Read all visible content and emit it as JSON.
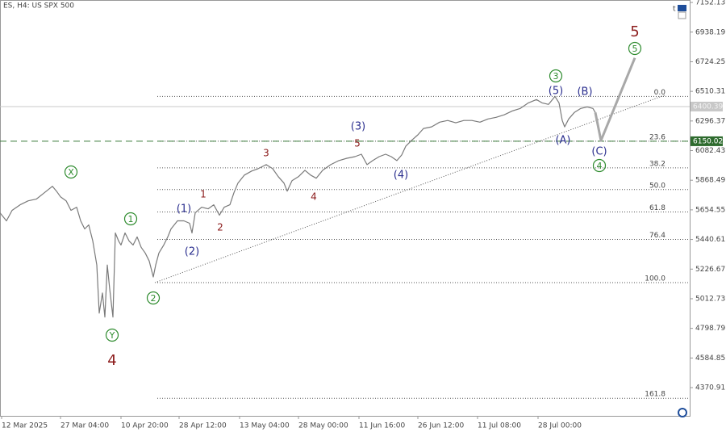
{
  "chart_data": {
    "type": "line",
    "title": "ES, H4:  US SPX 500",
    "corner_text": "t",
    "series": [
      {
        "color": "#7a7a7a",
        "x": [
          0,
          8,
          15,
          25,
          35,
          45,
          55,
          65,
          70,
          75,
          82,
          88,
          95,
          100,
          105,
          110,
          115,
          120,
          123,
          127,
          130,
          133,
          136,
          140,
          143,
          147,
          150,
          155,
          160,
          165,
          170,
          175,
          180,
          185,
          190,
          193,
          197,
          203,
          208,
          212,
          220,
          228,
          235,
          238,
          242,
          250,
          258,
          265,
          272,
          278,
          285,
          290,
          295,
          303,
          312,
          320,
          330,
          338,
          345,
          352,
          356,
          362,
          370,
          378,
          385,
          392,
          400,
          410,
          420,
          430,
          440,
          448,
          455,
          462,
          470,
          478,
          485,
          492,
          498,
          503,
          510,
          518,
          525,
          535,
          545,
          555,
          565,
          575,
          585,
          595,
          605,
          615,
          625,
          635,
          645,
          655,
          665,
          672,
          680,
          688,
          693,
          697,
          700,
          705,
          712,
          720,
          728,
          735,
          738
        ],
        "values": [
          5633,
          5575,
          5651,
          5691,
          5720,
          5732,
          5778,
          5825,
          5790,
          5749,
          5720,
          5651,
          5674,
          5575,
          5517,
          5546,
          5430,
          5256,
          4909,
          5054,
          4880,
          5256,
          5083,
          4880,
          5488,
          5430,
          5401,
          5488,
          5430,
          5401,
          5459,
          5384,
          5343,
          5285,
          5170,
          5256,
          5343,
          5401,
          5459,
          5517,
          5575,
          5575,
          5558,
          5488,
          5633,
          5674,
          5662,
          5691,
          5616,
          5674,
          5691,
          5778,
          5848,
          5906,
          5935,
          5952,
          5981,
          5952,
          5894,
          5848,
          5790,
          5865,
          5894,
          5940,
          5906,
          5883,
          5940,
          5981,
          6010,
          6027,
          6039,
          6056,
          5981,
          6010,
          6039,
          6056,
          6039,
          6010,
          6051,
          6114,
          6155,
          6196,
          6242,
          6254,
          6288,
          6300,
          6283,
          6300,
          6300,
          6288,
          6311,
          6323,
          6341,
          6369,
          6387,
          6427,
          6451,
          6427,
          6416,
          6474,
          6427,
          6300,
          6254,
          6311,
          6358,
          6387,
          6398,
          6387,
          6358
        ]
      },
      {
        "color": "#a8a8a8",
        "x": [
          738,
          745,
          787
        ],
        "values": [
          6358,
          6155,
          6752
        ]
      }
    ],
    "trendline": {
      "x": [
        192,
        825
      ],
      "values": [
        5129,
        6485
      ]
    },
    "fib_levels": [
      {
        "value": 6474,
        "label": "0.0"
      },
      {
        "value": 6150,
        "label": "23.6"
      },
      {
        "value": 5958,
        "label": "38.2"
      },
      {
        "value": 5801,
        "label": "50.0"
      },
      {
        "value": 5639,
        "label": "61.8"
      },
      {
        "value": 5441,
        "label": "76.4"
      },
      {
        "value": 5129,
        "label": "100.0"
      },
      {
        "value": 4294,
        "label": "161.8"
      }
    ],
    "price_tags": [
      {
        "value": 6400.39,
        "color": "#c8c8c8"
      },
      {
        "value": 6150.02,
        "color": "#2e6b2e"
      }
    ],
    "annotations": [
      {
        "text": "X",
        "color": "#2e8b2e",
        "circled": true
      },
      {
        "text": "4",
        "color": "#8b1a1a",
        "circled": false
      },
      {
        "text": "Y",
        "color": "#2e8b2e",
        "circled": true
      },
      {
        "text": "1",
        "color": "#2e8b2e",
        "circled": true
      },
      {
        "text": "2",
        "color": "#2e8b2e",
        "circled": true
      },
      {
        "text": "(1)",
        "color": "#2b2f8f",
        "circled": false
      },
      {
        "text": "(2)",
        "color": "#2b2f8f",
        "circled": false
      },
      {
        "text": "1",
        "color": "#8b1a1a",
        "circled": false
      },
      {
        "text": "2",
        "color": "#8b1a1a",
        "circled": false
      },
      {
        "text": "3",
        "color": "#8b1a1a",
        "circled": false
      },
      {
        "text": "4",
        "color": "#8b1a1a",
        "circled": false
      },
      {
        "text": "(3)",
        "color": "#2b2f8f",
        "circled": false
      },
      {
        "text": "5",
        "color": "#8b1a1a",
        "circled": false
      },
      {
        "text": "(4)",
        "color": "#2b2f8f",
        "circled": false
      },
      {
        "text": "3",
        "color": "#2e8b2e",
        "circled": true
      },
      {
        "text": "(5)",
        "color": "#2b2f8f",
        "circled": false
      },
      {
        "text": "(B)",
        "color": "#2b2f8f",
        "circled": false
      },
      {
        "text": "(A)",
        "color": "#2b2f8f",
        "circled": false
      },
      {
        "text": "(C)",
        "color": "#2b2f8f",
        "circled": false
      },
      {
        "text": "4",
        "color": "#2e8b2e",
        "circled": true
      },
      {
        "text": "5",
        "color": "#8b1a1a",
        "circled": false
      },
      {
        "text": "5",
        "color": "#2e8b2e",
        "circled": true
      }
    ],
    "xlim": [
      0,
      855
    ],
    "xticks": [
      {
        "value": 2,
        "label": "12 Mar 2025"
      },
      {
        "value": 75,
        "label": "27 Mar 04:00"
      },
      {
        "value": 150,
        "label": "10 Apr 20:00"
      },
      {
        "value": 222,
        "label": "28 Apr 12:00"
      },
      {
        "value": 297,
        "label": "13 May 04:00"
      },
      {
        "value": 370,
        "label": "28 May 00:00"
      },
      {
        "value": 445,
        "label": "11 Jun 16:00"
      },
      {
        "value": 518,
        "label": "26 Jun 12:00"
      },
      {
        "value": 592,
        "label": "11 Jul 08:00"
      },
      {
        "value": 667,
        "label": "28 Jul 00:00"
      }
    ],
    "ylim": [
      4167,
      7170
    ],
    "yticks": [
      7152.13,
      6938.19,
      6724.25,
      6510.31,
      6296.37,
      6082.43,
      5868.49,
      5654.55,
      5440.61,
      5226.67,
      5012.73,
      4798.79,
      4584.85,
      4370.91
    ]
  }
}
